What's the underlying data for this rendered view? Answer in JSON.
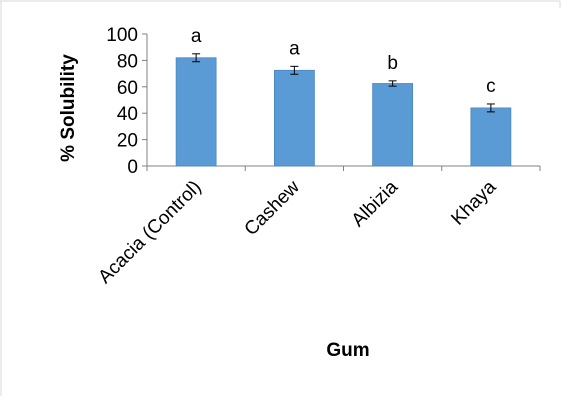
{
  "chart_data": {
    "type": "bar",
    "categories": [
      "Acacia (Control)",
      "Cashew",
      "Albizia",
      "Khaya"
    ],
    "values": [
      82,
      72.5,
      62.5,
      44
    ],
    "error": [
      3,
      3,
      2,
      3
    ],
    "significance_letters": [
      "a",
      "a",
      "b",
      "c"
    ],
    "xlabel": "Gum",
    "ylabel": "% Solubility",
    "ylim": [
      0,
      100
    ],
    "yticks": [
      0,
      20,
      40,
      60,
      80,
      100
    ],
    "grid": false,
    "legend": "none",
    "bar_color": "#5b9bd5",
    "bar_edge_color": "#4a86c1",
    "error_bar_color": "#000000"
  }
}
